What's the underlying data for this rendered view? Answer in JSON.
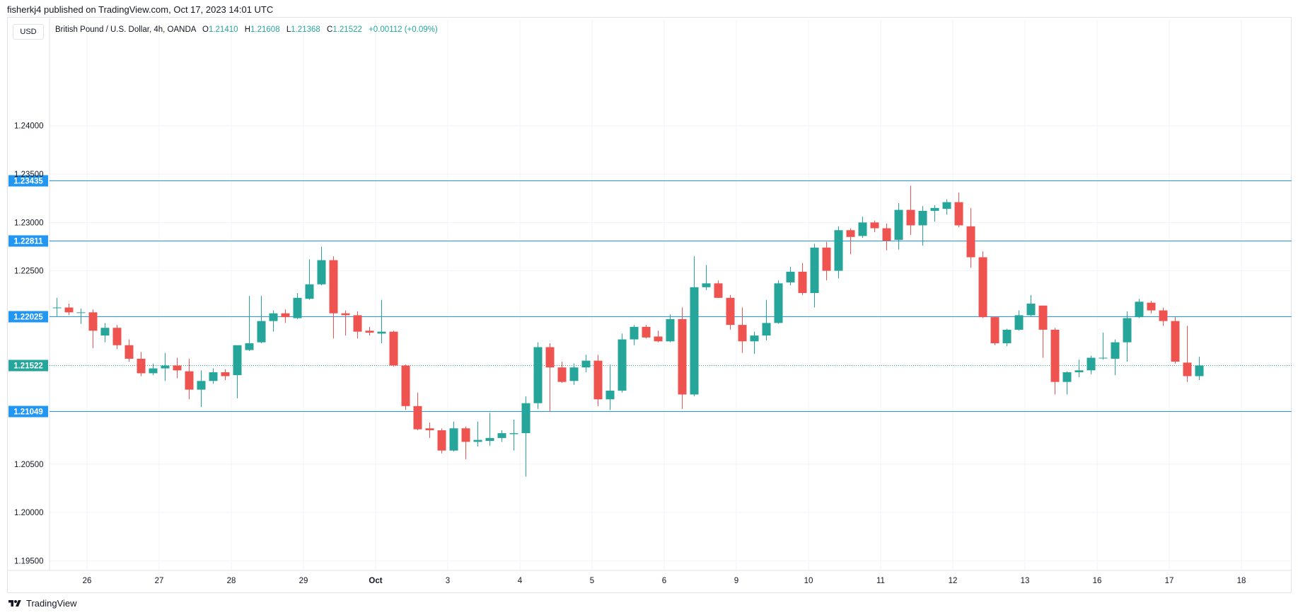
{
  "header": {
    "published_line": "fisherkj4 published on TradingView.com, Oct 17, 2023 14:01 UTC"
  },
  "toolbar": {
    "currency_label": "USD"
  },
  "legend": {
    "symbol": "British Pound / U.S. Dollar, 4h, OANDA",
    "open_key": "O",
    "open_val": "1.21410",
    "high_key": "H",
    "high_val": "1.21608",
    "low_key": "L",
    "low_val": "1.21368",
    "close_key": "C",
    "close_val": "1.21522",
    "change": "+0.00112 (+0.09%)"
  },
  "footer": {
    "brand": "TradingView"
  },
  "colors": {
    "up": "#26a69a",
    "down": "#ef5350",
    "hline": "#2196f3",
    "grid": "#f0f3fa"
  },
  "icons": {
    "brand_logo": "tradingview-logo-icon"
  },
  "chart_data": {
    "type": "candlestick",
    "timeframe": "4h",
    "y_axis": {
      "min": 1.194,
      "max": 1.2495,
      "side": "right",
      "ticks": [
        "1.19500",
        "1.20000",
        "1.20500",
        "1.22500",
        "1.23000",
        "1.23500",
        "1.24000"
      ]
    },
    "x_axis": {
      "labels": [
        {
          "label": "26",
          "bar": 2.5
        },
        {
          "label": "27",
          "bar": 8.5
        },
        {
          "label": "28",
          "bar": 14.5
        },
        {
          "label": "29",
          "bar": 20.5
        },
        {
          "label": "Oct",
          "bar": 26.5
        },
        {
          "label": "3",
          "bar": 32.5
        },
        {
          "label": "4",
          "bar": 38.5
        },
        {
          "label": "5",
          "bar": 44.5
        },
        {
          "label": "6",
          "bar": 50.5
        },
        {
          "label": "9",
          "bar": 56.5
        },
        {
          "label": "10",
          "bar": 62.5
        },
        {
          "label": "11",
          "bar": 68.5
        },
        {
          "label": "12",
          "bar": 74.5
        },
        {
          "label": "13",
          "bar": 80.5
        },
        {
          "label": "16",
          "bar": 86.5
        },
        {
          "label": "17",
          "bar": 92.5
        },
        {
          "label": "18",
          "bar": 98.5
        }
      ]
    },
    "horizontal_lines": [
      {
        "value": 1.23435,
        "label": "1.23435",
        "style": "solid"
      },
      {
        "value": 1.22811,
        "label": "1.22811",
        "style": "solid"
      },
      {
        "value": 1.22025,
        "label": "1.22025",
        "style": "solid"
      },
      {
        "value": 1.21049,
        "label": "1.21049",
        "style": "solid"
      },
      {
        "value": 1.21522,
        "label": "1.21522",
        "style": "dotted",
        "current_price": true
      }
    ],
    "candles": [
      {
        "o": 1.2212,
        "h": 1.2222,
        "l": 1.2203,
        "c": 1.2212
      },
      {
        "o": 1.2212,
        "h": 1.2216,
        "l": 1.2204,
        "c": 1.2207
      },
      {
        "o": 1.2207,
        "h": 1.2211,
        "l": 1.2195,
        "c": 1.2207
      },
      {
        "o": 1.2207,
        "h": 1.221,
        "l": 1.217,
        "c": 1.2188
      },
      {
        "o": 1.2183,
        "h": 1.2196,
        "l": 1.2176,
        "c": 1.2191
      },
      {
        "o": 1.2191,
        "h": 1.2194,
        "l": 1.2169,
        "c": 1.2173
      },
      {
        "o": 1.2173,
        "h": 1.2179,
        "l": 1.2156,
        "c": 1.2159
      },
      {
        "o": 1.2159,
        "h": 1.2166,
        "l": 1.2141,
        "c": 1.2144
      },
      {
        "o": 1.2144,
        "h": 1.2154,
        "l": 1.2142,
        "c": 1.2149
      },
      {
        "o": 1.2149,
        "h": 1.2165,
        "l": 1.2136,
        "c": 1.2152
      },
      {
        "o": 1.2152,
        "h": 1.216,
        "l": 1.2139,
        "c": 1.2147
      },
      {
        "o": 1.2146,
        "h": 1.2159,
        "l": 1.2117,
        "c": 1.2127
      },
      {
        "o": 1.2127,
        "h": 1.2147,
        "l": 1.2109,
        "c": 1.2136
      },
      {
        "o": 1.2136,
        "h": 1.2149,
        "l": 1.2133,
        "c": 1.2145
      },
      {
        "o": 1.2145,
        "h": 1.2148,
        "l": 1.2137,
        "c": 1.2141
      },
      {
        "o": 1.2142,
        "h": 1.2171,
        "l": 1.2118,
        "c": 1.2173
      },
      {
        "o": 1.2168,
        "h": 1.2224,
        "l": 1.2167,
        "c": 1.2175
      },
      {
        "o": 1.2176,
        "h": 1.2224,
        "l": 1.2175,
        "c": 1.2198
      },
      {
        "o": 1.2198,
        "h": 1.2209,
        "l": 1.2187,
        "c": 1.2206
      },
      {
        "o": 1.2206,
        "h": 1.221,
        "l": 1.2196,
        "c": 1.2202
      },
      {
        "o": 1.2201,
        "h": 1.2227,
        "l": 1.22,
        "c": 1.2222
      },
      {
        "o": 1.2221,
        "h": 1.2262,
        "l": 1.222,
        "c": 1.2236
      },
      {
        "o": 1.2236,
        "h": 1.2275,
        "l": 1.2235,
        "c": 1.2261
      },
      {
        "o": 1.2261,
        "h": 1.2265,
        "l": 1.218,
        "c": 1.2206
      },
      {
        "o": 1.2206,
        "h": 1.2209,
        "l": 1.2183,
        "c": 1.2204
      },
      {
        "o": 1.2204,
        "h": 1.2208,
        "l": 1.218,
        "c": 1.2187
      },
      {
        "o": 1.2188,
        "h": 1.2192,
        "l": 1.2183,
        "c": 1.2186
      },
      {
        "o": 1.2185,
        "h": 1.222,
        "l": 1.2175,
        "c": 1.2187
      },
      {
        "o": 1.2187,
        "h": 1.2188,
        "l": 1.2151,
        "c": 1.2152
      },
      {
        "o": 1.2152,
        "h": 1.2153,
        "l": 1.2106,
        "c": 1.211
      },
      {
        "o": 1.211,
        "h": 1.2124,
        "l": 1.2085,
        "c": 1.2086
      },
      {
        "o": 1.2087,
        "h": 1.2093,
        "l": 1.2077,
        "c": 1.2085
      },
      {
        "o": 1.2085,
        "h": 1.2087,
        "l": 1.2061,
        "c": 1.2064
      },
      {
        "o": 1.2064,
        "h": 1.2094,
        "l": 1.2063,
        "c": 1.2087
      },
      {
        "o": 1.2087,
        "h": 1.2089,
        "l": 1.2055,
        "c": 1.2073
      },
      {
        "o": 1.2073,
        "h": 1.2094,
        "l": 1.2068,
        "c": 1.2075
      },
      {
        "o": 1.2074,
        "h": 1.2103,
        "l": 1.2069,
        "c": 1.2077
      },
      {
        "o": 1.2077,
        "h": 1.2085,
        "l": 1.2073,
        "c": 1.2082
      },
      {
        "o": 1.2081,
        "h": 1.2096,
        "l": 1.2064,
        "c": 1.2082
      },
      {
        "o": 1.2082,
        "h": 1.212,
        "l": 1.2037,
        "c": 1.2113
      },
      {
        "o": 1.2113,
        "h": 1.2176,
        "l": 1.2107,
        "c": 1.2171
      },
      {
        "o": 1.2171,
        "h": 1.2175,
        "l": 1.2104,
        "c": 1.215
      },
      {
        "o": 1.215,
        "h": 1.2156,
        "l": 1.2134,
        "c": 1.2135
      },
      {
        "o": 1.2136,
        "h": 1.2154,
        "l": 1.2132,
        "c": 1.215
      },
      {
        "o": 1.215,
        "h": 1.2163,
        "l": 1.2145,
        "c": 1.2157
      },
      {
        "o": 1.2157,
        "h": 1.2163,
        "l": 1.211,
        "c": 1.2117
      },
      {
        "o": 1.2117,
        "h": 1.2153,
        "l": 1.2106,
        "c": 1.2126
      },
      {
        "o": 1.2126,
        "h": 1.2185,
        "l": 1.2124,
        "c": 1.2179
      },
      {
        "o": 1.2179,
        "h": 1.2194,
        "l": 1.2173,
        "c": 1.2192
      },
      {
        "o": 1.2192,
        "h": 1.2194,
        "l": 1.218,
        "c": 1.2181
      },
      {
        "o": 1.2182,
        "h": 1.2188,
        "l": 1.2176,
        "c": 1.2177
      },
      {
        "o": 1.2177,
        "h": 1.2205,
        "l": 1.2176,
        "c": 1.22
      },
      {
        "o": 1.22,
        "h": 1.2212,
        "l": 1.2107,
        "c": 1.2122
      },
      {
        "o": 1.2122,
        "h": 1.2265,
        "l": 1.212,
        "c": 1.2233
      },
      {
        "o": 1.2233,
        "h": 1.2256,
        "l": 1.223,
        "c": 1.2237
      },
      {
        "o": 1.2237,
        "h": 1.224,
        "l": 1.2222,
        "c": 1.2222
      },
      {
        "o": 1.2222,
        "h": 1.2225,
        "l": 1.2189,
        "c": 1.2194
      },
      {
        "o": 1.2194,
        "h": 1.2212,
        "l": 1.2165,
        "c": 1.2177
      },
      {
        "o": 1.2177,
        "h": 1.2187,
        "l": 1.2164,
        "c": 1.2183
      },
      {
        "o": 1.2183,
        "h": 1.222,
        "l": 1.2178,
        "c": 1.2196
      },
      {
        "o": 1.2196,
        "h": 1.224,
        "l": 1.2195,
        "c": 1.2237
      },
      {
        "o": 1.2238,
        "h": 1.2254,
        "l": 1.2235,
        "c": 1.2249
      },
      {
        "o": 1.2249,
        "h": 1.2258,
        "l": 1.2225,
        "c": 1.2227
      },
      {
        "o": 1.2227,
        "h": 1.2278,
        "l": 1.2212,
        "c": 1.2274
      },
      {
        "o": 1.2274,
        "h": 1.228,
        "l": 1.224,
        "c": 1.225
      },
      {
        "o": 1.225,
        "h": 1.2296,
        "l": 1.2242,
        "c": 1.2292
      },
      {
        "o": 1.2292,
        "h": 1.2294,
        "l": 1.2267,
        "c": 1.2285
      },
      {
        "o": 1.2286,
        "h": 1.2306,
        "l": 1.2284,
        "c": 1.23
      },
      {
        "o": 1.23,
        "h": 1.2302,
        "l": 1.229,
        "c": 1.2294
      },
      {
        "o": 1.2294,
        "h": 1.2299,
        "l": 1.2271,
        "c": 1.2281
      },
      {
        "o": 1.2282,
        "h": 1.232,
        "l": 1.2272,
        "c": 1.2313
      },
      {
        "o": 1.2313,
        "h": 1.2338,
        "l": 1.2287,
        "c": 1.2297
      },
      {
        "o": 1.2297,
        "h": 1.2317,
        "l": 1.2276,
        "c": 1.2312
      },
      {
        "o": 1.2312,
        "h": 1.2318,
        "l": 1.2301,
        "c": 1.2315
      },
      {
        "o": 1.2314,
        "h": 1.2324,
        "l": 1.2308,
        "c": 1.2321
      },
      {
        "o": 1.2321,
        "h": 1.2331,
        "l": 1.2295,
        "c": 1.2297
      },
      {
        "o": 1.2296,
        "h": 1.2315,
        "l": 1.2253,
        "c": 1.2264
      },
      {
        "o": 1.2264,
        "h": 1.227,
        "l": 1.2201,
        "c": 1.2202
      },
      {
        "o": 1.2202,
        "h": 1.2203,
        "l": 1.2173,
        "c": 1.2175
      },
      {
        "o": 1.2175,
        "h": 1.219,
        "l": 1.2172,
        "c": 1.2189
      },
      {
        "o": 1.2189,
        "h": 1.2209,
        "l": 1.2188,
        "c": 1.2204
      },
      {
        "o": 1.2204,
        "h": 1.2225,
        "l": 1.2203,
        "c": 1.2216
      },
      {
        "o": 1.2214,
        "h": 1.2214,
        "l": 1.216,
        "c": 1.2189
      },
      {
        "o": 1.2189,
        "h": 1.2191,
        "l": 1.2122,
        "c": 1.2135
      },
      {
        "o": 1.2135,
        "h": 1.2146,
        "l": 1.2122,
        "c": 1.2145
      },
      {
        "o": 1.2145,
        "h": 1.2158,
        "l": 1.214,
        "c": 1.2147
      },
      {
        "o": 1.2147,
        "h": 1.2162,
        "l": 1.2143,
        "c": 1.216
      },
      {
        "o": 1.216,
        "h": 1.2186,
        "l": 1.2158,
        "c": 1.216
      },
      {
        "o": 1.2159,
        "h": 1.2179,
        "l": 1.2142,
        "c": 1.2176
      },
      {
        "o": 1.2176,
        "h": 1.2208,
        "l": 1.2156,
        "c": 1.2201
      },
      {
        "o": 1.2202,
        "h": 1.2221,
        "l": 1.2201,
        "c": 1.2218
      },
      {
        "o": 1.2217,
        "h": 1.2219,
        "l": 1.2206,
        "c": 1.2209
      },
      {
        "o": 1.2209,
        "h": 1.2212,
        "l": 1.2193,
        "c": 1.2198
      },
      {
        "o": 1.2198,
        "h": 1.2202,
        "l": 1.2154,
        "c": 1.2156
      },
      {
        "o": 1.2155,
        "h": 1.2193,
        "l": 1.2135,
        "c": 1.2141
      },
      {
        "o": 1.2141,
        "h": 1.2161,
        "l": 1.2137,
        "c": 1.2152
      }
    ]
  }
}
